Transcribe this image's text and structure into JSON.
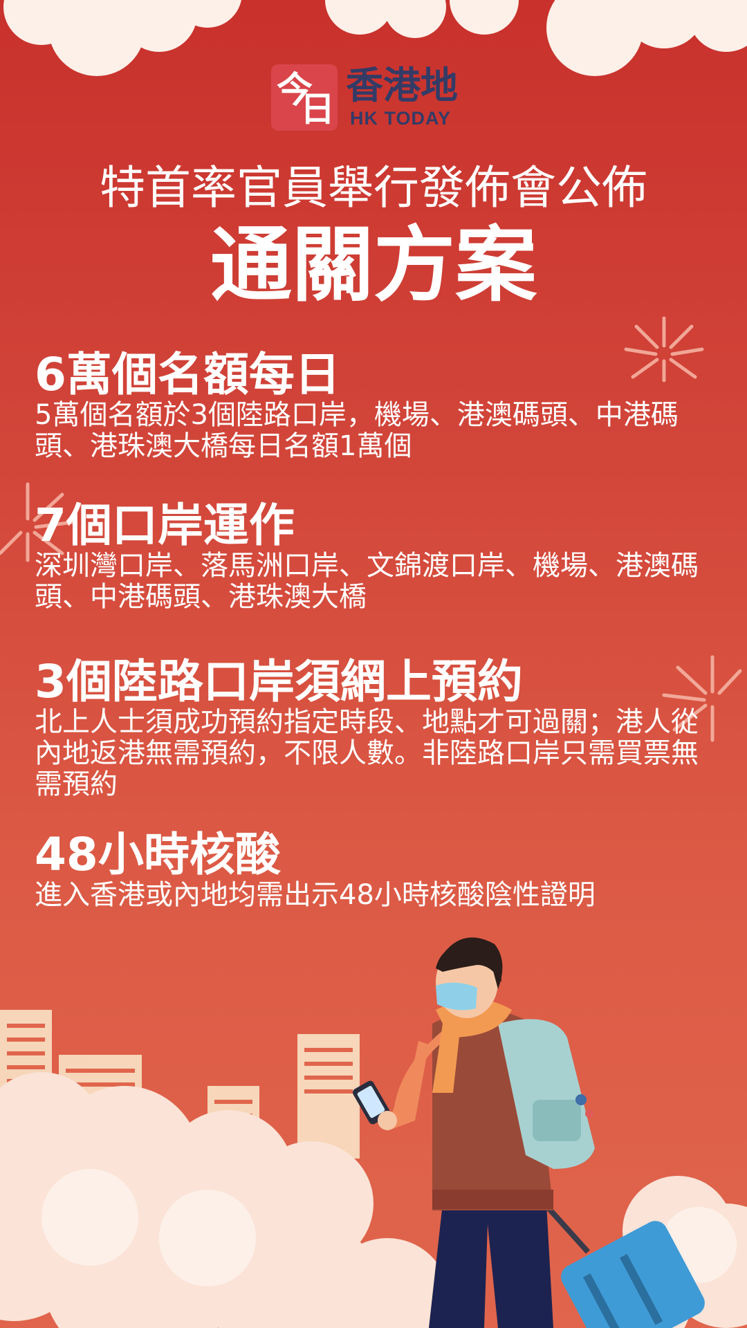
{
  "brand": {
    "logo_mark": "今日",
    "name_cn": "香港地",
    "name_en": "HK TODAY"
  },
  "header": {
    "subtitle": "特首率官員舉行發佈會公佈",
    "title": "通關方案"
  },
  "sections": [
    {
      "heading": "6萬個名額每日",
      "body": "5萬個名額於3個陸路口岸，機場、港澳碼頭、中港碼頭、港珠澳大橋每日名額1萬個"
    },
    {
      "heading": "7個口岸運作",
      "body": "深圳灣口岸、落馬洲口岸、文錦渡口岸、機場、港澳碼頭、中港碼頭、港珠澳大橋"
    },
    {
      "heading": "3個陸路口岸須網上預約",
      "body": "北上人士須成功預約指定時段、地點才可過關；港人從內地返港無需預約，不限人數。非陸路口岸只需買票無需預約"
    },
    {
      "heading": "48小時核酸",
      "body": "進入香港或內地均需出示48小時核酸陰性證明"
    }
  ],
  "colors": {
    "background_top": "#c9312c",
    "background_bottom": "#e0654c",
    "logo_red": "#d9454a",
    "logo_navy": "#333b66",
    "text": "#ffffff"
  },
  "illustration": {
    "icons": [
      "fireworks-icon",
      "cloud-icon",
      "building-icon",
      "traveler-with-mask-icon",
      "suitcase-icon",
      "phone-icon"
    ]
  }
}
